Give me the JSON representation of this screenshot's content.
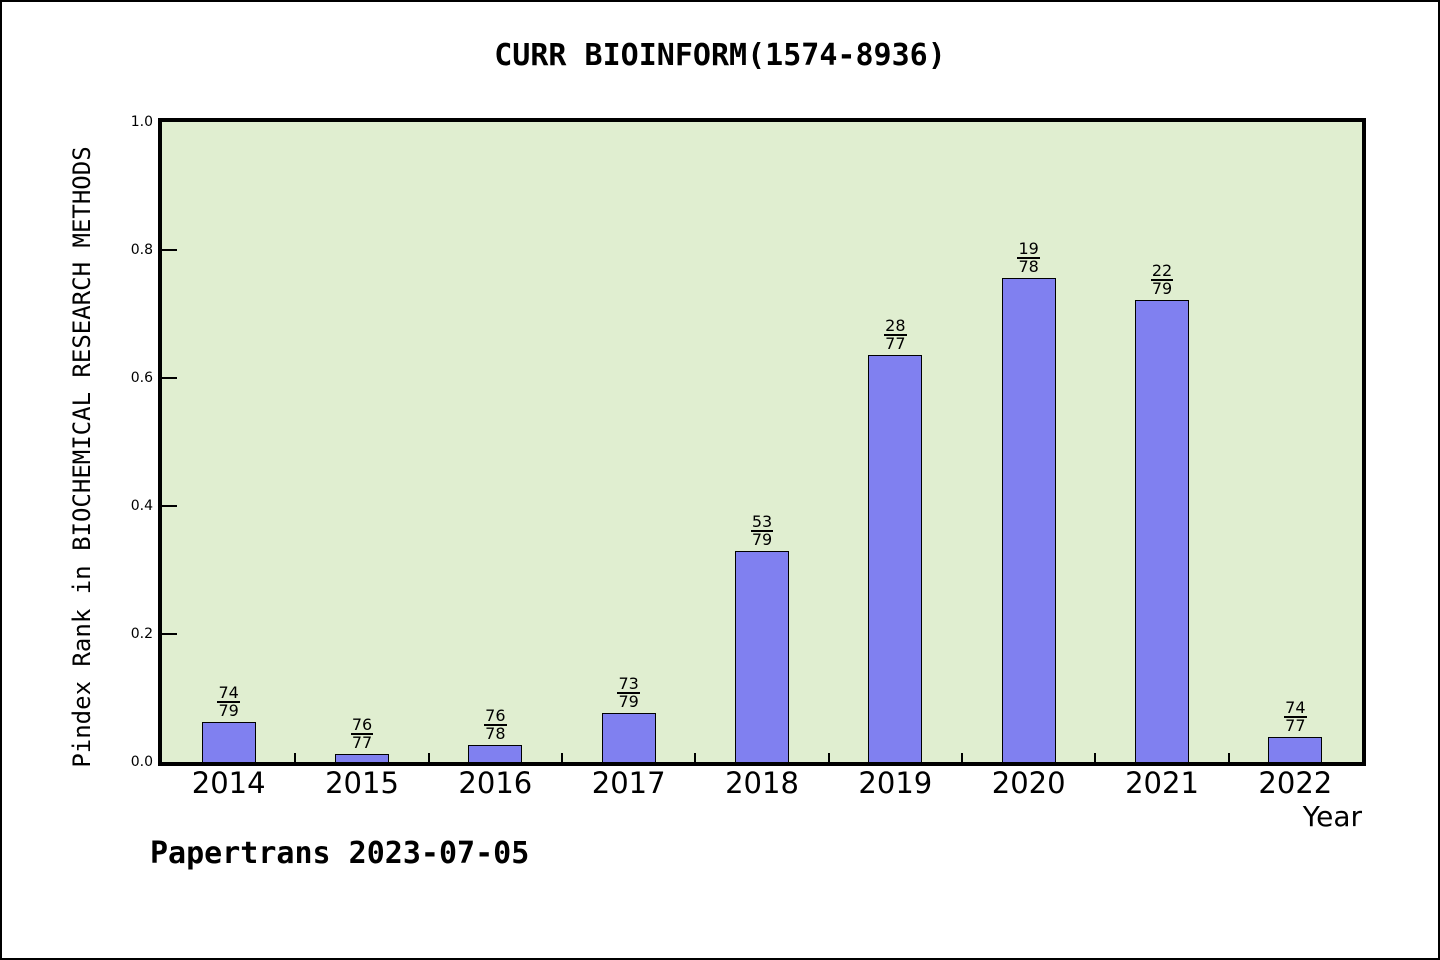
{
  "chart_data": {
    "type": "bar",
    "title": "CURR BIOINFORM(1574-8936)",
    "xlabel": "Year",
    "ylabel": "Pindex Rank in BIOCHEMICAL RESEARCH METHODS",
    "categories": [
      "2014",
      "2015",
      "2016",
      "2017",
      "2018",
      "2019",
      "2020",
      "2021",
      "2022"
    ],
    "values": [
      0.063,
      0.013,
      0.026,
      0.076,
      0.329,
      0.636,
      0.756,
      0.722,
      0.039
    ],
    "bar_labels": [
      {
        "numerator": "74",
        "denominator": "79"
      },
      {
        "numerator": "76",
        "denominator": "77"
      },
      {
        "numerator": "76",
        "denominator": "78"
      },
      {
        "numerator": "73",
        "denominator": "79"
      },
      {
        "numerator": "53",
        "denominator": "79"
      },
      {
        "numerator": "28",
        "denominator": "77"
      },
      {
        "numerator": "19",
        "denominator": "78"
      },
      {
        "numerator": "22",
        "denominator": "79"
      },
      {
        "numerator": "74",
        "denominator": "77"
      }
    ],
    "ylim": [
      0.0,
      1.0
    ],
    "yticks": [
      "0.0",
      "0.2",
      "0.4",
      "0.6",
      "0.8",
      "1.0"
    ],
    "grid": false,
    "legend": null,
    "colors": {
      "bar_fill": "#8080f0",
      "bar_border": "#000000",
      "plot_background": "#e0eed0",
      "frame": "#000000",
      "text": "#000000",
      "page_background": "#ffffff"
    },
    "annotation": "Papertrans 2023-07-05"
  }
}
